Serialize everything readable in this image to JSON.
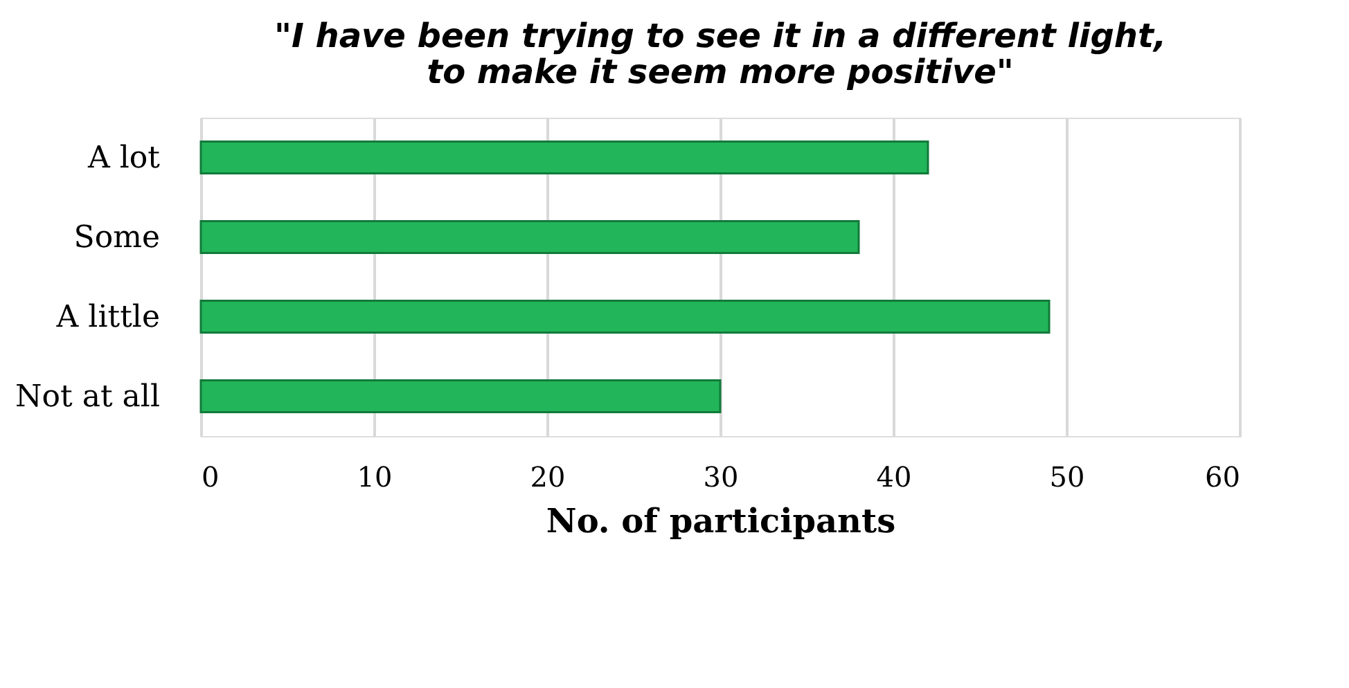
{
  "chart_data": {
    "type": "bar",
    "orientation": "horizontal",
    "title": "\"I have been trying to see it in a different light, to make it seem more positive\"",
    "xlabel": "No. of participants",
    "categories": [
      "A lot",
      "Some",
      "A little",
      "Not at all"
    ],
    "values": [
      42,
      38,
      49,
      30
    ],
    "color": "#22b55a",
    "xlim": [
      0,
      60
    ],
    "xticks": [
      0,
      10,
      20,
      30,
      40,
      50,
      60
    ],
    "grid": "x"
  }
}
